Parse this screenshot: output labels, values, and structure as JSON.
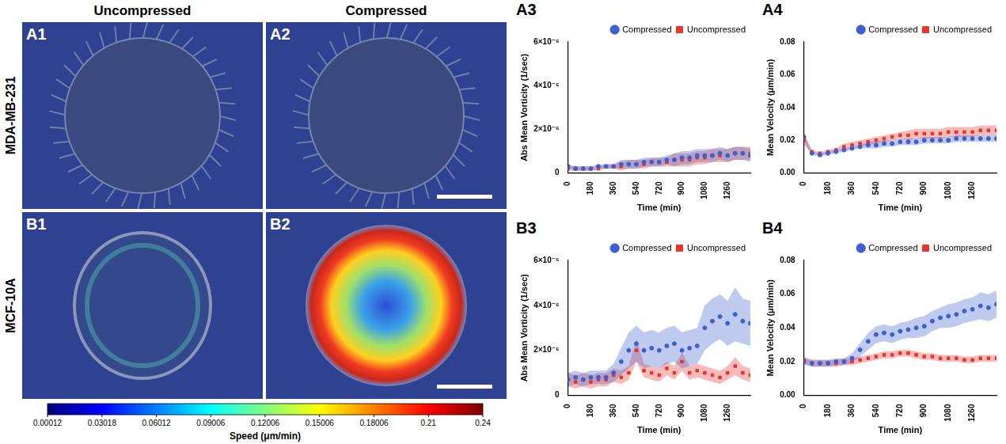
{
  "figure": {
    "columns": [
      "Uncompressed",
      "Compressed"
    ],
    "rows": [
      "MDA-MB-231",
      "MCF-10A"
    ],
    "panels": [
      "A1",
      "A2",
      "B1",
      "B2"
    ],
    "colorbar": {
      "title": "Speed (μm/min)",
      "range": [
        0.00012,
        0.24
      ],
      "ticks": [
        0.00012,
        0.03018,
        0.06012,
        0.09006,
        0.12006,
        0.15006,
        0.18006,
        0.21,
        0.24
      ]
    }
  },
  "chart_data": [
    {
      "panel": "A3",
      "type": "scatter",
      "x_label": "Time (min)",
      "y_label": "Abs Mean Vorticity (1/sec)",
      "x": [
        0,
        60,
        120,
        180,
        240,
        300,
        360,
        420,
        480,
        540,
        600,
        660,
        720,
        780,
        840,
        900,
        960,
        1020,
        1080,
        1140,
        1200,
        1260,
        1320,
        1380,
        1440
      ],
      "xlim": [
        0,
        1440
      ],
      "xticks": [
        0,
        180,
        360,
        540,
        720,
        900,
        1080,
        1260
      ],
      "ylim": [
        0,
        6e-06
      ],
      "yticks": [
        0,
        {
          "value": 2e-06,
          "label": "2×10⁻⁶"
        },
        {
          "value": 4e-06,
          "label": "4×10⁻⁶"
        },
        {
          "value": 6e-06,
          "label": "6×10⁻⁶"
        }
      ],
      "grid": false,
      "legend": "top-right",
      "series": [
        {
          "name": "Compressed",
          "color": "#3f5fd0",
          "marker": "circle",
          "values": [
            3e-07,
            2e-07,
            2e-07,
            2e-07,
            3e-07,
            3e-07,
            3e-07,
            4e-07,
            4e-07,
            4e-07,
            5e-07,
            5e-07,
            5e-07,
            6e-07,
            6e-07,
            7e-07,
            7e-07,
            8e-07,
            8e-07,
            8e-07,
            9e-07,
            8e-07,
            9e-07,
            9e-07,
            8e-07
          ],
          "error": [
            1e-07,
            1e-07,
            1e-07,
            1e-07,
            1e-07,
            1e-07,
            1e-07,
            2e-07,
            2e-07,
            2e-07,
            2e-07,
            2e-07,
            2e-07,
            2e-07,
            3e-07,
            3e-07,
            3e-07,
            3e-07,
            3e-07,
            3e-07,
            3e-07,
            3e-07,
            3e-07,
            3e-07,
            3e-07
          ]
        },
        {
          "name": "Uncompressed",
          "color": "#e8352e",
          "marker": "square",
          "values": [
            2e-07,
            2e-07,
            2e-07,
            2e-07,
            2e-07,
            3e-07,
            3e-07,
            3e-07,
            4e-07,
            4e-07,
            4e-07,
            5e-07,
            5e-07,
            5e-07,
            6e-07,
            6e-07,
            6e-07,
            7e-07,
            7e-07,
            8e-07,
            8e-07,
            8e-07,
            9e-07,
            9e-07,
            9e-07
          ],
          "error": [
            1e-07,
            1e-07,
            1e-07,
            1e-07,
            1e-07,
            1e-07,
            1e-07,
            2e-07,
            2e-07,
            2e-07,
            2e-07,
            2e-07,
            2e-07,
            2e-07,
            3e-07,
            3e-07,
            3e-07,
            3e-07,
            3e-07,
            3e-07,
            3e-07,
            3e-07,
            3e-07,
            3e-07,
            3e-07
          ]
        }
      ]
    },
    {
      "panel": "A4",
      "type": "scatter",
      "x_label": "Time (min)",
      "y_label": "Mean Velocity (μm/min)",
      "x": [
        0,
        60,
        120,
        180,
        240,
        300,
        360,
        420,
        480,
        540,
        600,
        660,
        720,
        780,
        840,
        900,
        960,
        1020,
        1080,
        1140,
        1200,
        1260,
        1320,
        1380,
        1440
      ],
      "xlim": [
        0,
        1440
      ],
      "xticks": [
        0,
        180,
        360,
        540,
        720,
        900,
        1080,
        1260
      ],
      "ylim": [
        0,
        0.08
      ],
      "yticks": [
        {
          "value": 0,
          "label": "0.00"
        },
        0.02,
        0.04,
        0.06,
        0.08
      ],
      "grid": false,
      "legend": "top-right",
      "series": [
        {
          "name": "Compressed",
          "color": "#3f5fd0",
          "marker": "circle",
          "values": [
            0.022,
            0.012,
            0.011,
            0.012,
            0.013,
            0.014,
            0.015,
            0.016,
            0.017,
            0.017,
            0.018,
            0.018,
            0.019,
            0.019,
            0.019,
            0.02,
            0.02,
            0.02,
            0.02,
            0.021,
            0.021,
            0.021,
            0.021,
            0.021,
            0.021
          ],
          "error": [
            0.003,
            0.001,
            0.001,
            0.001,
            0.001,
            0.001,
            0.001,
            0.001,
            0.002,
            0.002,
            0.002,
            0.002,
            0.002,
            0.002,
            0.002,
            0.002,
            0.002,
            0.002,
            0.002,
            0.002,
            0.002,
            0.002,
            0.002,
            0.002,
            0.002
          ]
        },
        {
          "name": "Uncompressed",
          "color": "#e8352e",
          "marker": "square",
          "values": [
            0.02,
            0.013,
            0.012,
            0.013,
            0.014,
            0.016,
            0.017,
            0.018,
            0.019,
            0.02,
            0.021,
            0.022,
            0.023,
            0.023,
            0.024,
            0.024,
            0.024,
            0.024,
            0.025,
            0.025,
            0.025,
            0.025,
            0.026,
            0.026,
            0.026
          ],
          "error": [
            0.003,
            0.001,
            0.001,
            0.001,
            0.001,
            0.002,
            0.002,
            0.002,
            0.002,
            0.002,
            0.002,
            0.002,
            0.002,
            0.003,
            0.003,
            0.003,
            0.003,
            0.003,
            0.003,
            0.003,
            0.003,
            0.003,
            0.003,
            0.003,
            0.003
          ]
        }
      ]
    },
    {
      "panel": "B3",
      "type": "scatter",
      "x_label": "Time (min)",
      "y_label": "Abs Mean Vorticity (1/sec)",
      "x": [
        0,
        60,
        120,
        180,
        240,
        300,
        360,
        420,
        480,
        540,
        600,
        660,
        720,
        780,
        840,
        900,
        960,
        1020,
        1080,
        1140,
        1200,
        1260,
        1320,
        1380,
        1440
      ],
      "xlim": [
        0,
        1440
      ],
      "xticks": [
        0,
        180,
        360,
        540,
        720,
        900,
        1080,
        1260
      ],
      "ylim": [
        0,
        6e-06
      ],
      "yticks": [
        0,
        {
          "value": 2e-06,
          "label": "2×10⁻⁶"
        },
        {
          "value": 4e-06,
          "label": "4×10⁻⁶"
        },
        {
          "value": 6e-06,
          "label": "6×10⁻⁶"
        }
      ],
      "grid": false,
      "legend": "top-right",
      "series": [
        {
          "name": "Compressed",
          "color": "#3f5fd0",
          "marker": "circle",
          "values": [
            7e-07,
            8e-07,
            7e-07,
            8e-07,
            8e-07,
            8e-07,
            1e-06,
            1.5e-06,
            2e-06,
            2.3e-06,
            2e-06,
            2.1e-06,
            2e-06,
            2.2e-06,
            2.3e-06,
            2e-06,
            2.1e-06,
            2.2e-06,
            3e-06,
            3.3e-06,
            3.5e-06,
            3.2e-06,
            3.6e-06,
            3.3e-06,
            3.2e-06
          ],
          "error": [
            3e-07,
            3e-07,
            3e-07,
            3e-07,
            3e-07,
            3e-07,
            4e-07,
            6e-07,
            8e-07,
            8e-07,
            8e-07,
            8e-07,
            8e-07,
            8e-07,
            8e-07,
            8e-07,
            8e-07,
            8e-07,
            1e-06,
            1e-06,
            1e-06,
            1e-06,
            1.2e-06,
            1e-06,
            1e-06
          ]
        },
        {
          "name": "Uncompressed",
          "color": "#e8352e",
          "marker": "square",
          "values": [
            7e-07,
            6e-07,
            7e-07,
            6e-07,
            7e-07,
            7e-07,
            9e-07,
            8e-07,
            1e-06,
            2e-06,
            1.1e-06,
            1e-06,
            9e-07,
            1.2e-06,
            1e-06,
            1.5e-06,
            1e-06,
            1.1e-06,
            1e-06,
            9e-07,
            8e-07,
            1e-06,
            1.3e-06,
            1e-06,
            9e-07
          ],
          "error": [
            3e-07,
            3e-07,
            3e-07,
            3e-07,
            3e-07,
            3e-07,
            3e-07,
            3e-07,
            3e-07,
            5e-07,
            3e-07,
            3e-07,
            3e-07,
            3e-07,
            3e-07,
            4e-07,
            3e-07,
            3e-07,
            3e-07,
            3e-07,
            3e-07,
            3e-07,
            4e-07,
            3e-07,
            3e-07
          ]
        }
      ]
    },
    {
      "panel": "B4",
      "type": "scatter",
      "x_label": "Time (min)",
      "y_label": "Mean Velocity (μm/min)",
      "x": [
        0,
        60,
        120,
        180,
        240,
        300,
        360,
        420,
        480,
        540,
        600,
        660,
        720,
        780,
        840,
        900,
        960,
        1020,
        1080,
        1140,
        1200,
        1260,
        1320,
        1380,
        1440
      ],
      "xlim": [
        0,
        1440
      ],
      "xticks": [
        0,
        180,
        360,
        540,
        720,
        900,
        1080,
        1260
      ],
      "ylim": [
        0,
        0.08
      ],
      "yticks": [
        {
          "value": 0,
          "label": "0.00"
        },
        0.02,
        0.04,
        0.06,
        0.08
      ],
      "grid": false,
      "legend": "top-right",
      "series": [
        {
          "name": "Compressed",
          "color": "#3f5fd0",
          "marker": "circle",
          "values": [
            0.02,
            0.019,
            0.019,
            0.019,
            0.02,
            0.02,
            0.022,
            0.027,
            0.032,
            0.036,
            0.037,
            0.036,
            0.038,
            0.039,
            0.04,
            0.041,
            0.044,
            0.046,
            0.047,
            0.048,
            0.05,
            0.051,
            0.053,
            0.052,
            0.054
          ],
          "error": [
            0.002,
            0.002,
            0.002,
            0.002,
            0.002,
            0.002,
            0.003,
            0.004,
            0.005,
            0.005,
            0.005,
            0.005,
            0.005,
            0.005,
            0.006,
            0.006,
            0.006,
            0.006,
            0.007,
            0.007,
            0.007,
            0.007,
            0.008,
            0.008,
            0.008
          ]
        },
        {
          "name": "Uncompressed",
          "color": "#e8352e",
          "marker": "square",
          "values": [
            0.021,
            0.019,
            0.019,
            0.019,
            0.019,
            0.02,
            0.02,
            0.021,
            0.022,
            0.023,
            0.024,
            0.024,
            0.025,
            0.025,
            0.024,
            0.023,
            0.023,
            0.022,
            0.022,
            0.022,
            0.021,
            0.021,
            0.022,
            0.022,
            0.022
          ],
          "error": [
            0.002,
            0.002,
            0.002,
            0.002,
            0.002,
            0.002,
            0.002,
            0.002,
            0.002,
            0.002,
            0.002,
            0.002,
            0.002,
            0.002,
            0.002,
            0.002,
            0.002,
            0.002,
            0.002,
            0.002,
            0.002,
            0.002,
            0.002,
            0.002,
            0.002
          ]
        }
      ]
    }
  ]
}
